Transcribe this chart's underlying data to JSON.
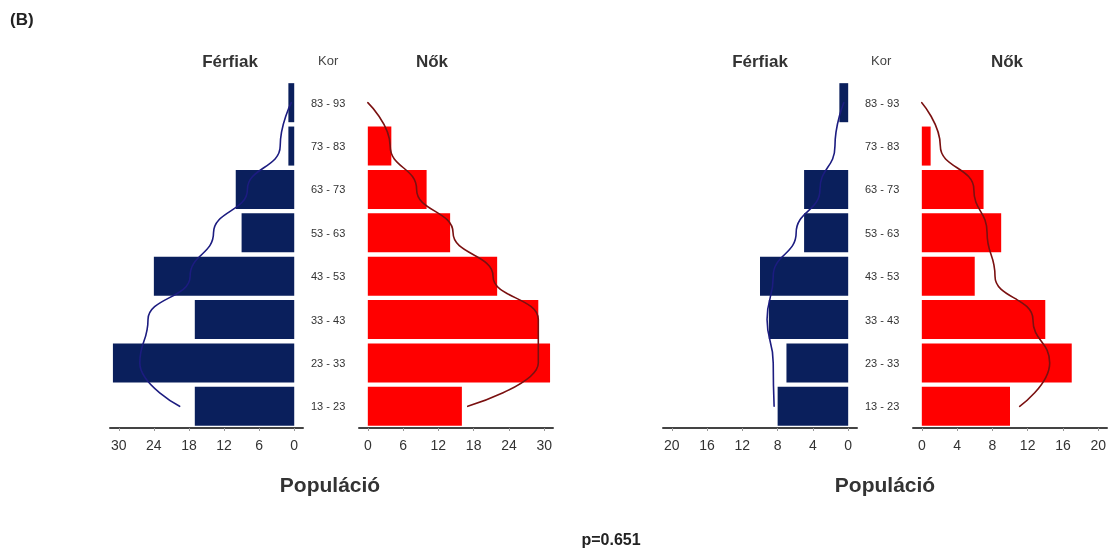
{
  "chart_data": [
    {
      "type": "bar",
      "orientation": "horizontal",
      "title": "Férfiak",
      "ylabel": "Kor",
      "xlabel": "Populáció",
      "annotations": [
        "(B)",
        "p=0.651"
      ],
      "categories": [
        "83 - 93",
        "73 - 83",
        "63 - 73",
        "53 - 63",
        "43 - 53",
        "33 - 43",
        "23 - 33",
        "13 - 23"
      ],
      "xlim": [
        31.5,
        -1.5
      ],
      "xticks": [
        30,
        24,
        18,
        12,
        6,
        0
      ],
      "marker": "none",
      "line_style": "solid",
      "series": [
        {
          "color": "#0a1f5c",
          "values": [
            1,
            1,
            10,
            9,
            24,
            17,
            31,
            17
          ]
        },
        {
          "type": "line",
          "color": "#1c1c80",
          "values": [
            0.5,
            2.4,
            8,
            13.8,
            17.8,
            25,
            26.4,
            19.6
          ]
        }
      ]
    },
    {
      "type": "bar",
      "orientation": "horizontal",
      "title": "Nők",
      "tick_labels": "x",
      "xlim": [
        -1.5,
        31.5
      ],
      "xticks": [
        0,
        6,
        12,
        18,
        24,
        30
      ],
      "marker": "none",
      "line_style": "solid",
      "series": [
        {
          "color": "#ff0000",
          "values": [
            0,
            4,
            10,
            14,
            22,
            29,
            31,
            16
          ]
        },
        {
          "type": "line",
          "color": "#7a1010",
          "values": [
            0,
            3.8,
            8.3,
            14.5,
            21.3,
            29,
            29,
            17
          ]
        }
      ]
    },
    {
      "type": "bar",
      "orientation": "horizontal",
      "title": "Férfiak",
      "ylabel": "Kor",
      "xlabel": "Populáció",
      "categories": [
        "83 - 93",
        "73 - 83",
        "63 - 73",
        "53 - 63",
        "43 - 53",
        "33 - 43",
        "23 - 33",
        "13 - 23"
      ],
      "xlim": [
        21,
        -1
      ],
      "xticks": [
        20,
        16,
        12,
        8,
        4,
        0
      ],
      "marker": "none",
      "line_style": "solid",
      "series": [
        {
          "color": "#0a1f5c",
          "values": [
            1,
            0,
            5,
            5,
            10,
            9,
            7,
            8
          ]
        },
        {
          "type": "line",
          "color": "#1c1c80",
          "values": [
            0.5,
            1.5,
            3.2,
            5.9,
            8.5,
            9.2,
            8.5,
            8.4
          ]
        }
      ]
    },
    {
      "type": "bar",
      "orientation": "horizontal",
      "title": "Nők",
      "tick_labels": "x",
      "xlim": [
        -1,
        21
      ],
      "xticks": [
        0,
        4,
        8,
        12,
        16,
        20
      ],
      "marker": "none",
      "line_style": "solid",
      "series": [
        {
          "color": "#ff0000",
          "values": [
            0,
            1,
            7,
            9,
            6,
            14,
            17,
            10
          ]
        },
        {
          "type": "line",
          "color": "#7a1010",
          "values": [
            0,
            2.1,
            5.9,
            7.4,
            8.3,
            12.6,
            14.5,
            11.1
          ]
        }
      ]
    }
  ]
}
